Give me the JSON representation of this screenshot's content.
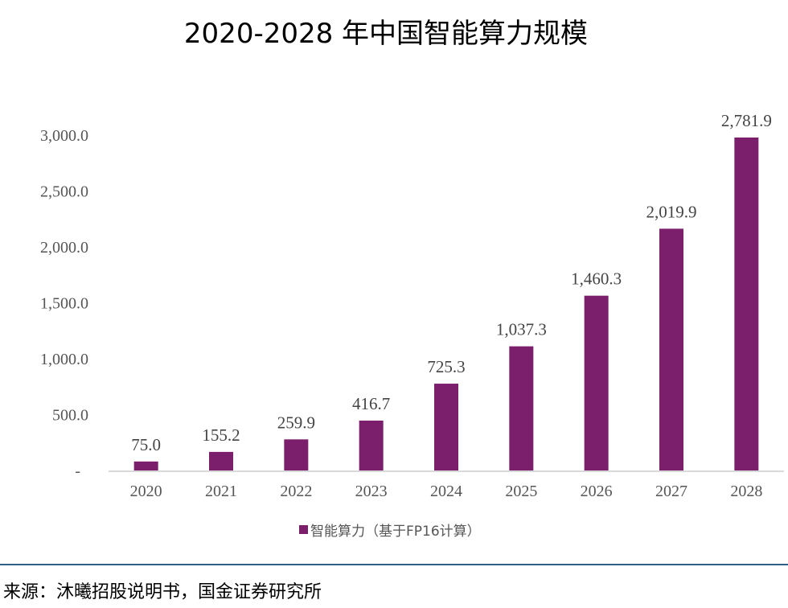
{
  "title": "2020-2028 年中国智能算力规模",
  "chart_data": {
    "type": "bar",
    "title": "2020-2028 年中国智能算力规模",
    "categories": [
      "2020",
      "2021",
      "2022",
      "2023",
      "2024",
      "2025",
      "2026",
      "2027",
      "2028"
    ],
    "series": [
      {
        "name": "智能算力（基于FP16计算）",
        "values": [
          75.0,
          155.2,
          259.9,
          416.7,
          725.3,
          1037.3,
          1460.3,
          2019.9,
          2781.9
        ],
        "color": "#7b1e6b"
      }
    ],
    "data_labels": [
      "75.0",
      "155.2",
      "259.9",
      "416.7",
      "725.3",
      "1,037.3",
      "1,460.3",
      "2,019.9",
      "2,781.9"
    ],
    "y_ticks": [
      0,
      500,
      1000,
      1500,
      2000,
      2500,
      3000
    ],
    "y_tick_labels": [
      "-",
      "500.0",
      "1,000.0",
      "1,500.0",
      "2,000.0",
      "2,500.0",
      "3,000.0"
    ],
    "ylim": [
      0,
      3000
    ],
    "xlabel": "",
    "ylabel": "",
    "grid": false,
    "legend_position": "bottom"
  },
  "source": "来源：沐曦招股说明书，国金证券研究所"
}
